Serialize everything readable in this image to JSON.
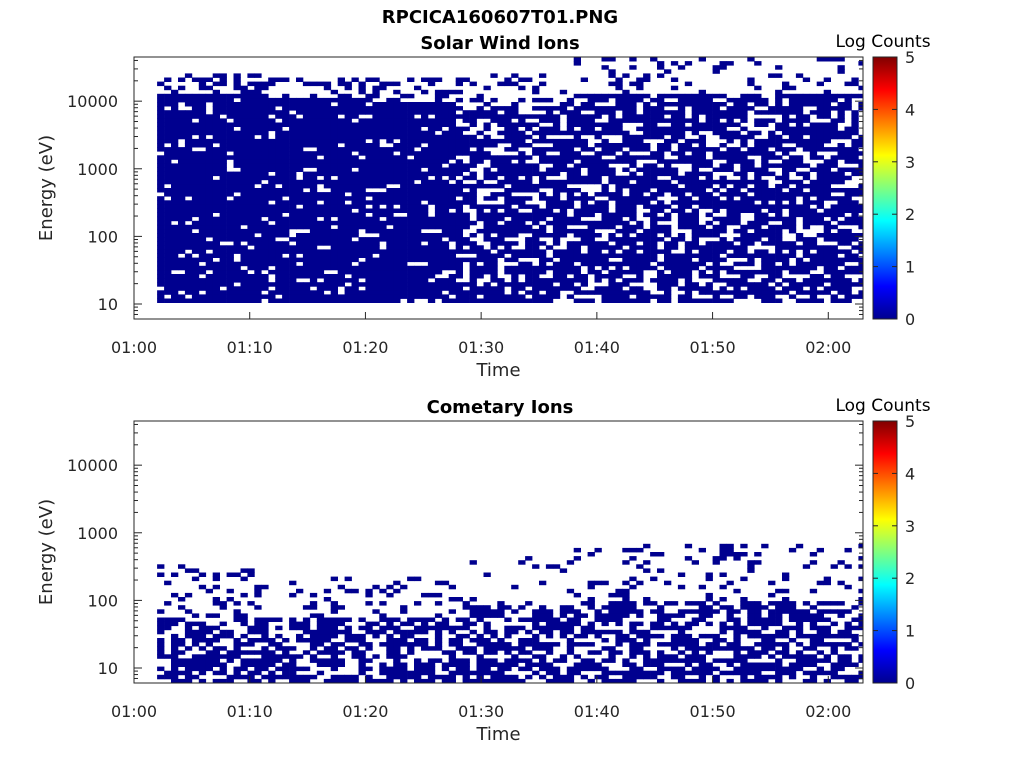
{
  "figure_title": "RPCICA160607T01.PNG",
  "chart_data": [
    {
      "type": "heatmap",
      "title": "Solar Wind Ions",
      "xlabel": "Time",
      "ylabel": "Energy (eV)",
      "x_ticks": [
        "01:00",
        "01:10",
        "01:20",
        "01:30",
        "01:40",
        "01:50",
        "02:00"
      ],
      "x_range": [
        "01:00",
        "02:03"
      ],
      "data_start": "01:02",
      "data_end": "02:03",
      "y_scale": "log",
      "y_ticks": [
        "10",
        "100",
        "1000",
        "10000"
      ],
      "y_range": [
        6,
        45000
      ],
      "colorbar_label": "Log Counts",
      "colorbar_ticks": [
        "0",
        "1",
        "2",
        "3",
        "4",
        "5"
      ],
      "colorbar_range": [
        0,
        5
      ],
      "colormap": "jet",
      "cell_color": "#00008f",
      "envelope_min_eV": [
        10,
        10,
        10,
        10,
        10,
        10,
        10
      ],
      "envelope_max_eV": [
        25000,
        22000,
        20000,
        25000,
        40000,
        40000,
        40000
      ]
    },
    {
      "type": "heatmap",
      "title": "Cometary Ions",
      "xlabel": "Time",
      "ylabel": "Energy (eV)",
      "x_ticks": [
        "01:00",
        "01:10",
        "01:20",
        "01:30",
        "01:40",
        "01:50",
        "02:00"
      ],
      "x_range": [
        "01:00",
        "02:03"
      ],
      "data_start": "01:02",
      "data_end": "02:03",
      "y_scale": "log",
      "y_ticks": [
        "10",
        "100",
        "1000",
        "10000"
      ],
      "y_range": [
        6,
        45000
      ],
      "colorbar_label": "Log Counts",
      "colorbar_ticks": [
        "0",
        "1",
        "2",
        "3",
        "4",
        "5"
      ],
      "colorbar_range": [
        0,
        5
      ],
      "colormap": "jet",
      "cell_color": "#00008f",
      "envelope_min_eV": [
        6,
        6,
        6,
        6,
        6,
        6,
        6
      ],
      "envelope_max_eV": [
        300,
        200,
        200,
        400,
        600,
        600,
        600
      ]
    }
  ]
}
